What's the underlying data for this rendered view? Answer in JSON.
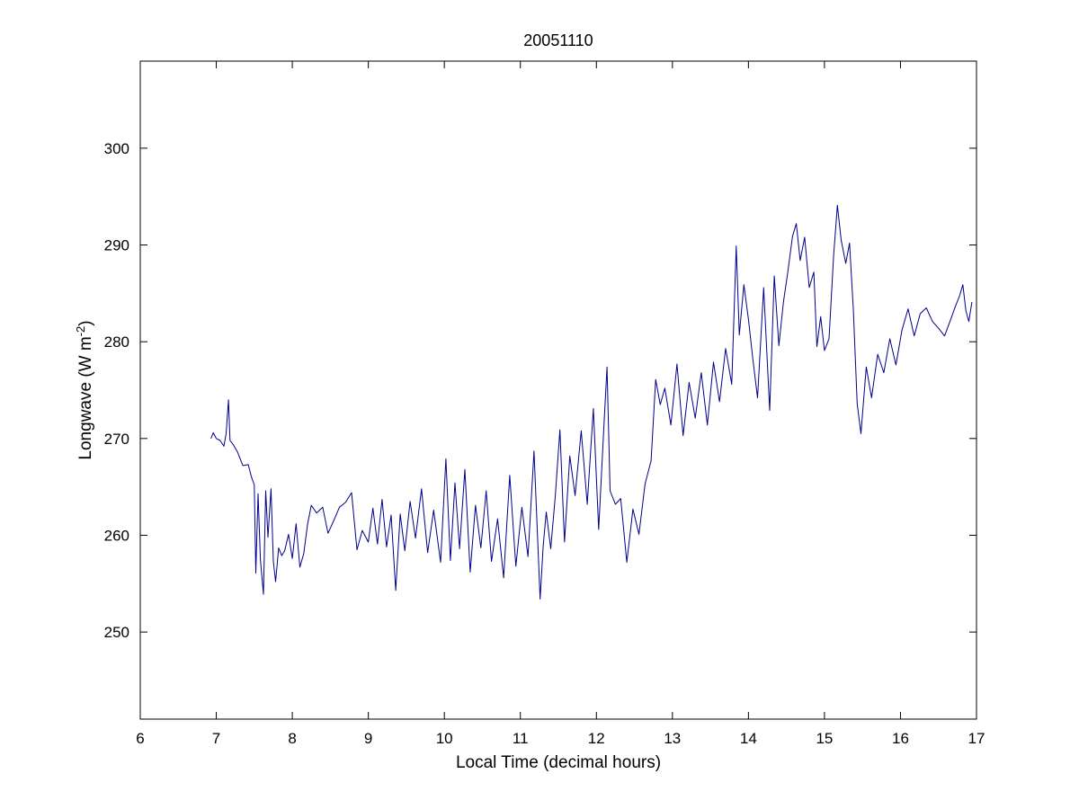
{
  "chart_data": {
    "type": "line",
    "title": "20051110",
    "xlabel": "Local Time (decimal hours)",
    "ylabel_main": "Longwave (W m",
    "ylabel_sup": "-2",
    "ylabel_close": ")",
    "xlim": [
      6,
      17
    ],
    "ylim": [
      241,
      309
    ],
    "xticks": [
      6,
      7,
      8,
      9,
      10,
      11,
      12,
      13,
      14,
      15,
      16,
      17
    ],
    "xtick_labels": [
      "6",
      "7",
      "8",
      "9",
      "10",
      "11",
      "12",
      "13",
      "14",
      "15",
      "16",
      "17"
    ],
    "yticks": [
      250,
      260,
      270,
      280,
      290,
      300
    ],
    "ytick_labels": [
      "250",
      "260",
      "270",
      "280",
      "290",
      "300"
    ],
    "grid": false,
    "line_color": "#00008b",
    "series": [
      {
        "x": [
          6.93,
          6.96,
          7.0,
          7.05,
          7.1,
          7.13,
          7.16,
          7.18,
          7.22,
          7.28,
          7.35,
          7.42,
          7.46,
          7.5,
          7.52,
          7.55,
          7.58,
          7.62,
          7.65,
          7.68,
          7.72,
          7.75,
          7.78,
          7.82,
          7.86,
          7.9,
          7.95,
          8.0,
          8.05,
          8.1,
          8.15,
          8.2,
          8.25,
          8.32,
          8.4,
          8.47,
          8.55,
          8.62,
          8.7,
          8.78,
          8.85,
          8.92,
          9.0,
          9.06,
          9.12,
          9.18,
          9.24,
          9.3,
          9.36,
          9.42,
          9.48,
          9.55,
          9.62,
          9.7,
          9.78,
          9.86,
          9.95,
          10.02,
          10.08,
          10.14,
          10.2,
          10.27,
          10.34,
          10.41,
          10.48,
          10.55,
          10.62,
          10.7,
          10.78,
          10.86,
          10.94,
          11.02,
          11.1,
          11.18,
          11.26,
          11.3,
          11.34,
          11.4,
          11.46,
          11.52,
          11.58,
          11.65,
          11.72,
          11.8,
          11.88,
          11.96,
          12.03,
          12.1,
          12.14,
          12.18,
          12.25,
          12.32,
          12.4,
          12.48,
          12.56,
          12.64,
          12.72,
          12.78,
          12.84,
          12.9,
          12.98,
          13.06,
          13.14,
          13.22,
          13.3,
          13.38,
          13.46,
          13.54,
          13.62,
          13.7,
          13.78,
          13.84,
          13.88,
          13.94,
          14.0,
          14.06,
          14.12,
          14.2,
          14.28,
          14.34,
          14.4,
          14.46,
          14.52,
          14.58,
          14.63,
          14.68,
          14.74,
          14.8,
          14.86,
          14.9,
          14.95,
          15.0,
          15.06,
          15.12,
          15.17,
          15.22,
          15.28,
          15.33,
          15.38,
          15.43,
          15.48,
          15.55,
          15.62,
          15.7,
          15.78,
          15.86,
          15.94,
          16.02,
          16.1,
          16.18,
          16.26,
          16.34,
          16.42,
          16.5,
          16.58,
          16.66,
          16.72,
          16.78,
          16.82,
          16.86,
          16.9,
          16.94
        ],
        "y": [
          270,
          270.6,
          270,
          269.8,
          269.2,
          270.5,
          274,
          269.8,
          269.4,
          268.6,
          267.2,
          267.3,
          266.1,
          265.2,
          256.1,
          264.3,
          257.5,
          253.9,
          264.6,
          259.8,
          264.8,
          257.3,
          255.2,
          258.7,
          257.9,
          258.4,
          260.1,
          257.6,
          261.2,
          256.7,
          258.1,
          261.1,
          263.1,
          262.3,
          262.9,
          260.2,
          261.6,
          262.9,
          263.4,
          264.4,
          258.5,
          260.5,
          259.3,
          262.8,
          259.1,
          263.7,
          258.8,
          262.1,
          254.3,
          262.2,
          258.4,
          263.5,
          259.7,
          264.8,
          258.2,
          262.6,
          257.2,
          267.9,
          257.4,
          265.4,
          258.6,
          266.8,
          256.2,
          263.1,
          258.7,
          264.6,
          257.3,
          261.7,
          255.6,
          266.2,
          256.8,
          262.9,
          257.8,
          268.7,
          253.4,
          258.9,
          262.4,
          258.6,
          264.1,
          270.9,
          259.3,
          268.2,
          264.1,
          270.8,
          263.2,
          273.1,
          260.6,
          271.4,
          277.4,
          264.6,
          263.2,
          263.8,
          257.2,
          262.7,
          260.1,
          265.3,
          267.7,
          276.1,
          273.5,
          275.2,
          271.4,
          277.7,
          270.3,
          275.8,
          272.1,
          276.8,
          271.4,
          277.9,
          273.8,
          279.3,
          275.6,
          289.9,
          280.7,
          285.9,
          282.3,
          278.1,
          274.2,
          285.6,
          272.9,
          286.8,
          279.6,
          284.1,
          287.3,
          290.9,
          292.2,
          288.4,
          290.8,
          285.6,
          287.2,
          279.5,
          282.6,
          279.1,
          280.3,
          288.9,
          294.1,
          290.5,
          288.1,
          290.2,
          283.4,
          273.6,
          270.5,
          277.4,
          274.2,
          278.7,
          276.8,
          280.3,
          277.6,
          281.2,
          283.4,
          280.6,
          282.9,
          283.5,
          282.1,
          281.4,
          280.6,
          282.3,
          283.6,
          284.8,
          285.9,
          283.2,
          282.1,
          284.1
        ]
      }
    ]
  }
}
